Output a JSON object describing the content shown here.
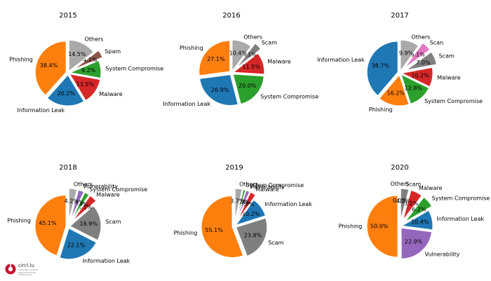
{
  "logo": {
    "name": "circl.lu",
    "tagline": "Computer Incident Response Center Luxembourg"
  },
  "chart_data": [
    {
      "type": "pie",
      "title": "2015",
      "slices": [
        {
          "label": "Phishing",
          "value": 38.4,
          "pct": "38.4%",
          "color": "#ff7f0e"
        },
        {
          "label": "Information Leak",
          "value": 20.2,
          "pct": "20.2%",
          "color": "#1f77b4"
        },
        {
          "label": "Malware",
          "value": 13.5,
          "pct": "13.5%",
          "color": "#d62728"
        },
        {
          "label": "System Compromise",
          "value": 9.2,
          "pct": "9.2%",
          "color": "#2ca02c"
        },
        {
          "label": "Spam",
          "value": 4.1,
          "pct": "4.1%",
          "color": "#8c564b"
        },
        {
          "label": "Others",
          "value": 14.5,
          "pct": "14.5%",
          "color": "#aaaaaa"
        }
      ]
    },
    {
      "type": "pie",
      "title": "2016",
      "slices": [
        {
          "label": "Phishing",
          "value": 27.1,
          "pct": "27.1%",
          "color": "#ff7f0e"
        },
        {
          "label": "Information Leak",
          "value": 26.9,
          "pct": "26.9%",
          "color": "#1f77b4"
        },
        {
          "label": "System Compromise",
          "value": 20.0,
          "pct": "20.0%",
          "color": "#2ca02c"
        },
        {
          "label": "Malware",
          "value": 11.5,
          "pct": "11.5%",
          "color": "#d62728"
        },
        {
          "label": "Scam",
          "value": 4.1,
          "pct": "4.1%",
          "color": "#7f7f7f"
        },
        {
          "label": "Others",
          "value": 10.4,
          "pct": "10.4%",
          "color": "#aaaaaa"
        }
      ]
    },
    {
      "type": "pie",
      "title": "2017",
      "slices": [
        {
          "label": "Information Leak",
          "value": 38.7,
          "pct": "38.7%",
          "color": "#1f77b4"
        },
        {
          "label": "Phishing",
          "value": 16.2,
          "pct": "16.2%",
          "color": "#ff7f0e"
        },
        {
          "label": "System Compromise",
          "value": 12.8,
          "pct": "12.8%",
          "color": "#2ca02c"
        },
        {
          "label": "Malware",
          "value": 10.2,
          "pct": "10.2%",
          "color": "#d62728"
        },
        {
          "label": "Scam",
          "value": 7.0,
          "pct": "7.0%",
          "color": "#7f7f7f"
        },
        {
          "label": "Scan",
          "value": 5.1,
          "pct": "5.1%",
          "color": "#e377c2"
        },
        {
          "label": "Others",
          "value": 9.9,
          "pct": "9.9%",
          "color": "#aaaaaa"
        }
      ]
    },
    {
      "type": "pie",
      "title": "2018",
      "slices": [
        {
          "label": "Phishing",
          "value": 45.1,
          "pct": "45.1%",
          "color": "#ff7f0e"
        },
        {
          "label": "Information Leak",
          "value": 22.1,
          "pct": "22.1%",
          "color": "#1f77b4"
        },
        {
          "label": "Scam",
          "value": 18.9,
          "pct": "18.9%",
          "color": "#7f7f7f"
        },
        {
          "label": "Malware",
          "value": 4.1,
          "pct": "4.1%",
          "color": "#d62728"
        },
        {
          "label": "System Compromise",
          "value": 2.4,
          "pct": "2.4%",
          "color": "#2ca02c"
        },
        {
          "label": "Vulnerability",
          "value": 2.9,
          "pct": "2.9%",
          "color": "#9467bd"
        },
        {
          "label": "Others",
          "value": 4.2,
          "pct": "4.2%",
          "color": "#aaaaaa"
        }
      ]
    },
    {
      "type": "pie",
      "title": "2019",
      "slices": [
        {
          "label": "Phishing",
          "value": 55.1,
          "pct": "55.1%",
          "color": "#ff7f0e"
        },
        {
          "label": "Scam",
          "value": 23.8,
          "pct": "23.8%",
          "color": "#7f7f7f"
        },
        {
          "label": "Information Leak",
          "value": 10.2,
          "pct": "10.2%",
          "color": "#1f77b4"
        },
        {
          "label": "Malware",
          "value": 3.0,
          "pct": "3.0%",
          "color": "#d62728"
        },
        {
          "label": "Vulnerability",
          "value": 1.8,
          "pct": "1.8%",
          "color": "#9467bd"
        },
        {
          "label": "System Compromise",
          "value": 1.2,
          "pct": "1.2%",
          "color": "#2ca02c"
        },
        {
          "label": "Others",
          "value": 3.7,
          "pct": "3.7%",
          "color": "#aaaaaa"
        }
      ]
    },
    {
      "type": "pie",
      "title": "2020",
      "slices": [
        {
          "label": "Phishing",
          "value": 50.0,
          "pct": "50.0%",
          "color": "#ff7f0e"
        },
        {
          "label": "Vulnerability",
          "value": 22.9,
          "pct": "22.9%",
          "color": "#9467bd"
        },
        {
          "label": "Information Leak",
          "value": 10.4,
          "pct": "10.4%",
          "color": "#1f77b4"
        },
        {
          "label": "System Compromise",
          "value": 6.2,
          "pct": "6.2%",
          "color": "#2ca02c"
        },
        {
          "label": "Malware",
          "value": 6.2,
          "pct": "6.2%",
          "color": "#d62728"
        },
        {
          "label": "Scam",
          "value": 4.2,
          "pct": "4.2%",
          "color": "#7f7f7f"
        },
        {
          "label": "Others",
          "value": 0.0,
          "pct": "0.0%",
          "color": "#aaaaaa"
        }
      ]
    }
  ]
}
